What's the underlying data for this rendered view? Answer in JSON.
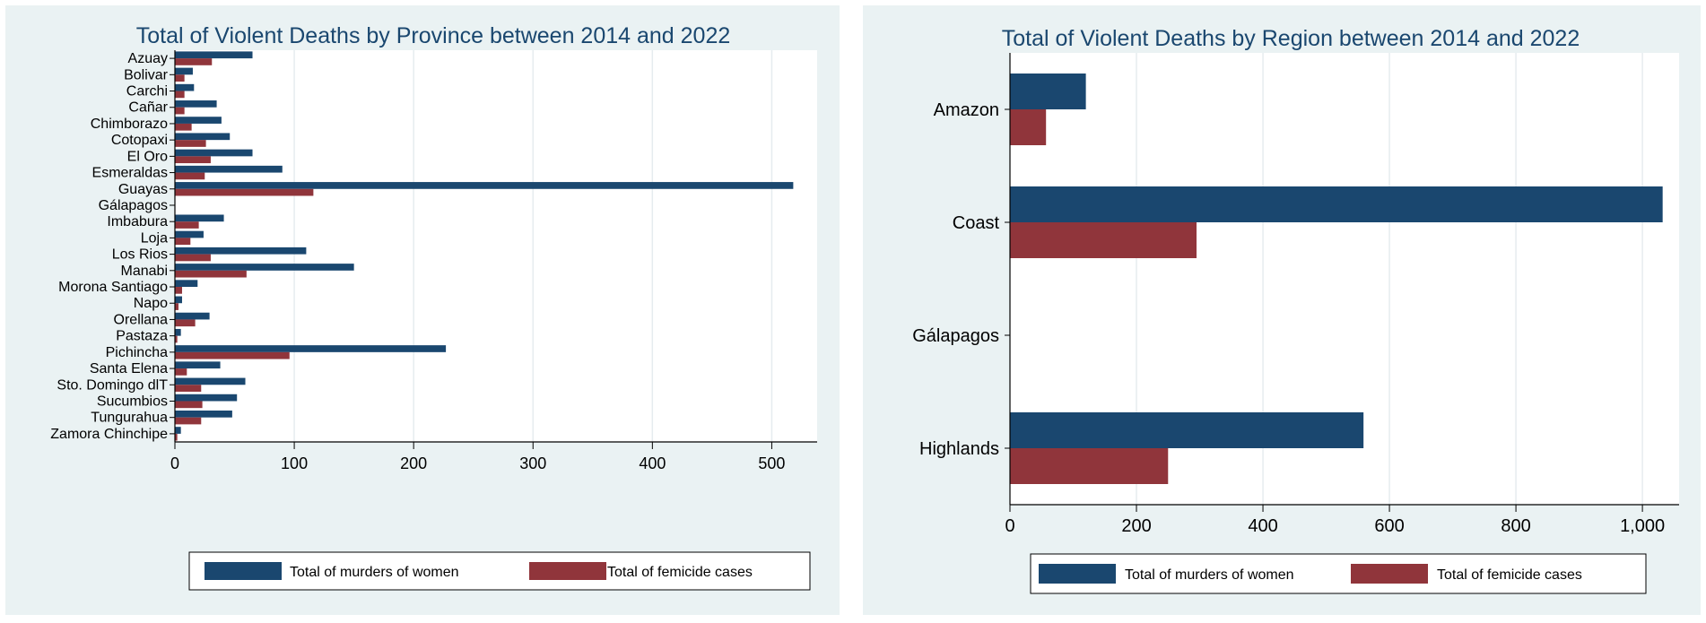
{
  "colors": {
    "murders": "#1a476f",
    "femicide": "#90353b",
    "panel_bg": "#eaf2f3",
    "plot_bg": "#ffffff",
    "grid": "#e6ecef"
  },
  "chart_data": [
    {
      "type": "bar",
      "orientation": "horizontal",
      "title": "Total of Violent Deaths by Province between 2014 and 2022",
      "categories": [
        "Azuay",
        "Bolivar",
        "Carchi",
        "Cañar",
        "Chimborazo",
        "Cotopaxi",
        "El Oro",
        "Esmeraldas",
        "Guayas",
        "Gálapagos",
        "Imbabura",
        "Loja",
        "Los Rios",
        "Manabi",
        "Morona Santiago",
        "Napo",
        "Orellana",
        "Pastaza",
        "Pichincha",
        "Santa Elena",
        "Sto. Domingo dlT",
        "Sucumbios",
        "Tungurahua",
        "Zamora Chinchipe"
      ],
      "series": [
        {
          "name": "Total of murders of women",
          "color": "#1a476f",
          "values": [
            65,
            15,
            16,
            35,
            39,
            46,
            65,
            90,
            518,
            0,
            41,
            24,
            110,
            150,
            19,
            6,
            29,
            5,
            227,
            38,
            59,
            52,
            48,
            5
          ]
        },
        {
          "name": "Total of femicide cases",
          "color": "#90353b",
          "values": [
            31,
            8,
            8,
            8,
            14,
            26,
            30,
            25,
            116,
            0,
            20,
            13,
            30,
            60,
            6,
            3,
            17,
            2,
            96,
            10,
            22,
            23,
            22,
            2
          ]
        }
      ],
      "xlim": [
        0,
        538
      ],
      "xticks": [
        0,
        100,
        200,
        300,
        400,
        500
      ],
      "xtick_labels": [
        "0",
        "100",
        "200",
        "300",
        "400",
        "500"
      ],
      "xlabel": "",
      "ylabel": "",
      "grid": true,
      "legend_position": "bottom"
    },
    {
      "type": "bar",
      "orientation": "horizontal",
      "title": "Total of Violent Deaths by Region between 2014 and 2022",
      "categories": [
        "Amazon",
        "Coast",
        "Gálapagos",
        "Highlands"
      ],
      "series": [
        {
          "name": "Total of murders of women",
          "color": "#1a476f",
          "values": [
            120,
            1032,
            0,
            559
          ]
        },
        {
          "name": "Total of femicide cases",
          "color": "#90353b",
          "values": [
            57,
            295,
            0,
            250
          ]
        }
      ],
      "xlim": [
        0,
        1058
      ],
      "xticks": [
        0,
        200,
        400,
        600,
        800,
        1000
      ],
      "xtick_labels": [
        "0",
        "200",
        "400",
        "600",
        "800",
        "1,000"
      ],
      "xlabel": "",
      "ylabel": "",
      "grid": true,
      "legend_position": "bottom"
    }
  ]
}
